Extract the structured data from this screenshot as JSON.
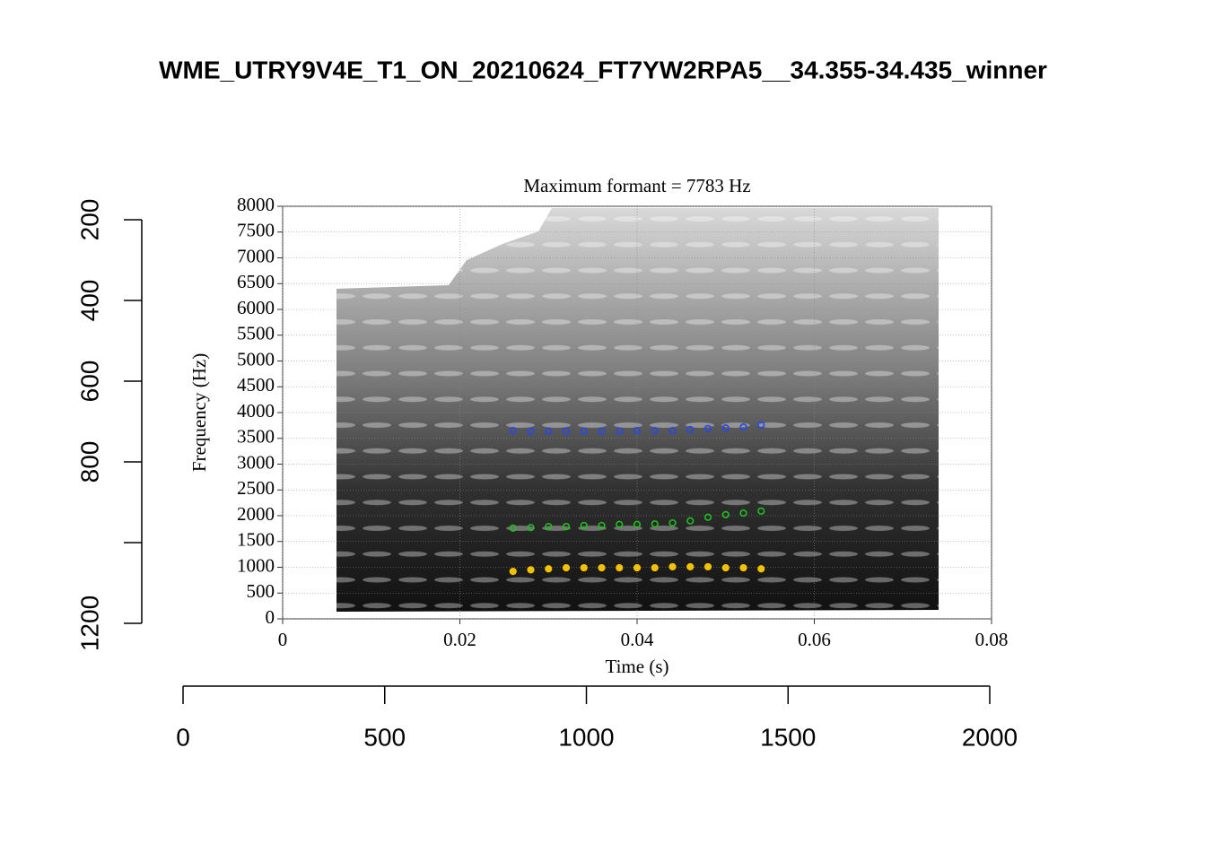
{
  "chart_data": [
    {
      "type": "axes",
      "title": "WME_UTRY9V4E_T1_ON_20210624_FT7YW2RPA5__34.355-34.435_winner",
      "xlim": [
        0,
        2000
      ],
      "xticks": [
        0,
        500,
        1000,
        1500,
        2000
      ],
      "ylim": [
        1200,
        200
      ],
      "yticks": [
        200,
        400,
        600,
        800,
        {
          "value": 1000,
          "label": null
        },
        1200
      ]
    },
    {
      "type": "scatter",
      "title": "Maximum formant = 7783 Hz",
      "xlabel": "Time (s)",
      "ylabel": "Frequency (Hz)",
      "x": [
        0.026,
        0.028,
        0.03,
        0.032,
        0.034,
        0.036,
        0.038,
        0.04,
        0.042,
        0.044,
        0.046,
        0.048,
        0.05,
        0.052,
        0.054
      ],
      "series": [
        {
          "color": "#f2c200",
          "values": [
            920,
            950,
            970,
            990,
            990,
            990,
            990,
            990,
            990,
            1010,
            1010,
            1010,
            990,
            990,
            970
          ]
        },
        {
          "color": "#1fbf1f",
          "values": [
            1760,
            1770,
            1790,
            1790,
            1810,
            1810,
            1830,
            1830,
            1840,
            1860,
            1900,
            1970,
            2020,
            2050,
            2090
          ]
        },
        {
          "color": "#2448ee",
          "values": [
            3650,
            3640,
            3640,
            3640,
            3640,
            3640,
            3640,
            3650,
            3650,
            3650,
            3670,
            3690,
            3700,
            3720,
            3760
          ]
        }
      ],
      "xlim": [
        0,
        0.08
      ],
      "xticks": [
        0,
        0.02,
        0.04,
        0.06,
        0.08
      ],
      "ylim": [
        0,
        8000
      ],
      "yticks": [
        0,
        500,
        1000,
        1500,
        2000,
        2500,
        3000,
        3500,
        4000,
        4500,
        5000,
        5500,
        6000,
        6500,
        7000,
        7500,
        8000
      ],
      "grid": true
    }
  ]
}
